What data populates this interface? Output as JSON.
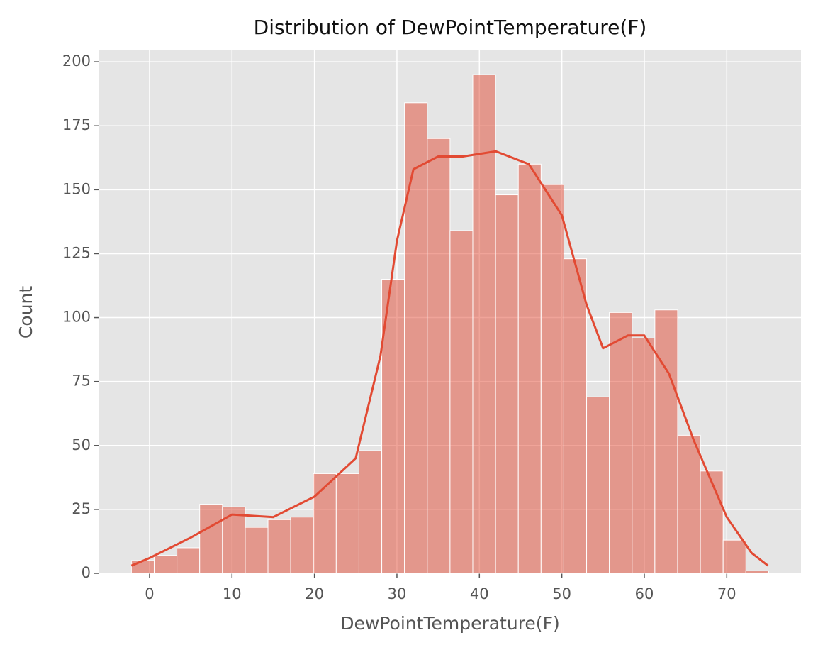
{
  "chart_data": {
    "type": "histogram",
    "title": "Distribution of DewPointTemperature(F)",
    "x_label": "DewPointTemperature(F)",
    "y_label": "Count",
    "bins": [
      -2.2,
      0.56,
      3.32,
      6.08,
      8.84,
      11.6,
      14.36,
      17.12,
      19.88,
      22.64,
      25.4,
      28.16,
      30.92,
      33.68,
      36.44,
      39.2,
      41.96,
      44.72,
      47.48,
      50.24,
      53.0,
      55.76,
      58.52,
      61.28,
      64.04,
      66.8,
      69.56,
      72.32,
      75.08
    ],
    "values": [
      5,
      7,
      10,
      27,
      26,
      18,
      21,
      22,
      39,
      39,
      48,
      115,
      184,
      170,
      134,
      195,
      148,
      160,
      152,
      123,
      69,
      102,
      92,
      103,
      54,
      40,
      13,
      1
    ],
    "kde": {
      "x": [
        -2.2,
        0,
        5,
        10,
        15,
        20,
        25,
        28,
        30,
        32,
        35,
        38,
        42,
        46,
        50,
        53,
        55,
        58,
        60,
        63,
        66,
        70,
        73,
        75
      ],
      "y": [
        3,
        6,
        14,
        23,
        22,
        30,
        45,
        85,
        130,
        158,
        163,
        163,
        165,
        160,
        140,
        105,
        88,
        93,
        93,
        78,
        52,
        22,
        8,
        3
      ]
    },
    "color": "#e24a33",
    "xlim": [
      -6.1,
      79.0
    ],
    "ylim": [
      0,
      204.75
    ],
    "xticks": [
      0,
      10,
      20,
      30,
      40,
      50,
      60,
      70
    ],
    "yticks": [
      0,
      25,
      50,
      75,
      100,
      125,
      150,
      175,
      200
    ],
    "grid": true
  }
}
